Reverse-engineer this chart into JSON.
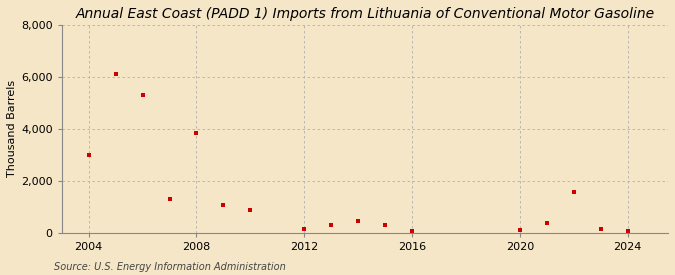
{
  "title": "Annual East Coast (PADD 1) Imports from Lithuania of Conventional Motor Gasoline",
  "ylabel": "Thousand Barrels",
  "source": "Source: U.S. Energy Information Administration",
  "background_color": "#f5e6c8",
  "plot_bg_color": "#fdf5e0",
  "marker_color": "#cc0000",
  "years": [
    2004,
    2005,
    2006,
    2007,
    2008,
    2009,
    2010,
    2012,
    2013,
    2014,
    2015,
    2016,
    2020,
    2021,
    2022,
    2023,
    2024
  ],
  "values": [
    3000,
    6100,
    5300,
    1300,
    3850,
    1050,
    850,
    150,
    300,
    450,
    300,
    50,
    100,
    350,
    1550,
    150,
    50
  ],
  "ylim": [
    0,
    8000
  ],
  "yticks": [
    0,
    2000,
    4000,
    6000,
    8000
  ],
  "xticks": [
    2004,
    2008,
    2012,
    2016,
    2020,
    2024
  ],
  "xlim": [
    2003.0,
    2025.5
  ],
  "grid_color": "#b0b0b0",
  "title_fontsize": 10,
  "label_fontsize": 8,
  "tick_fontsize": 8,
  "source_fontsize": 7
}
